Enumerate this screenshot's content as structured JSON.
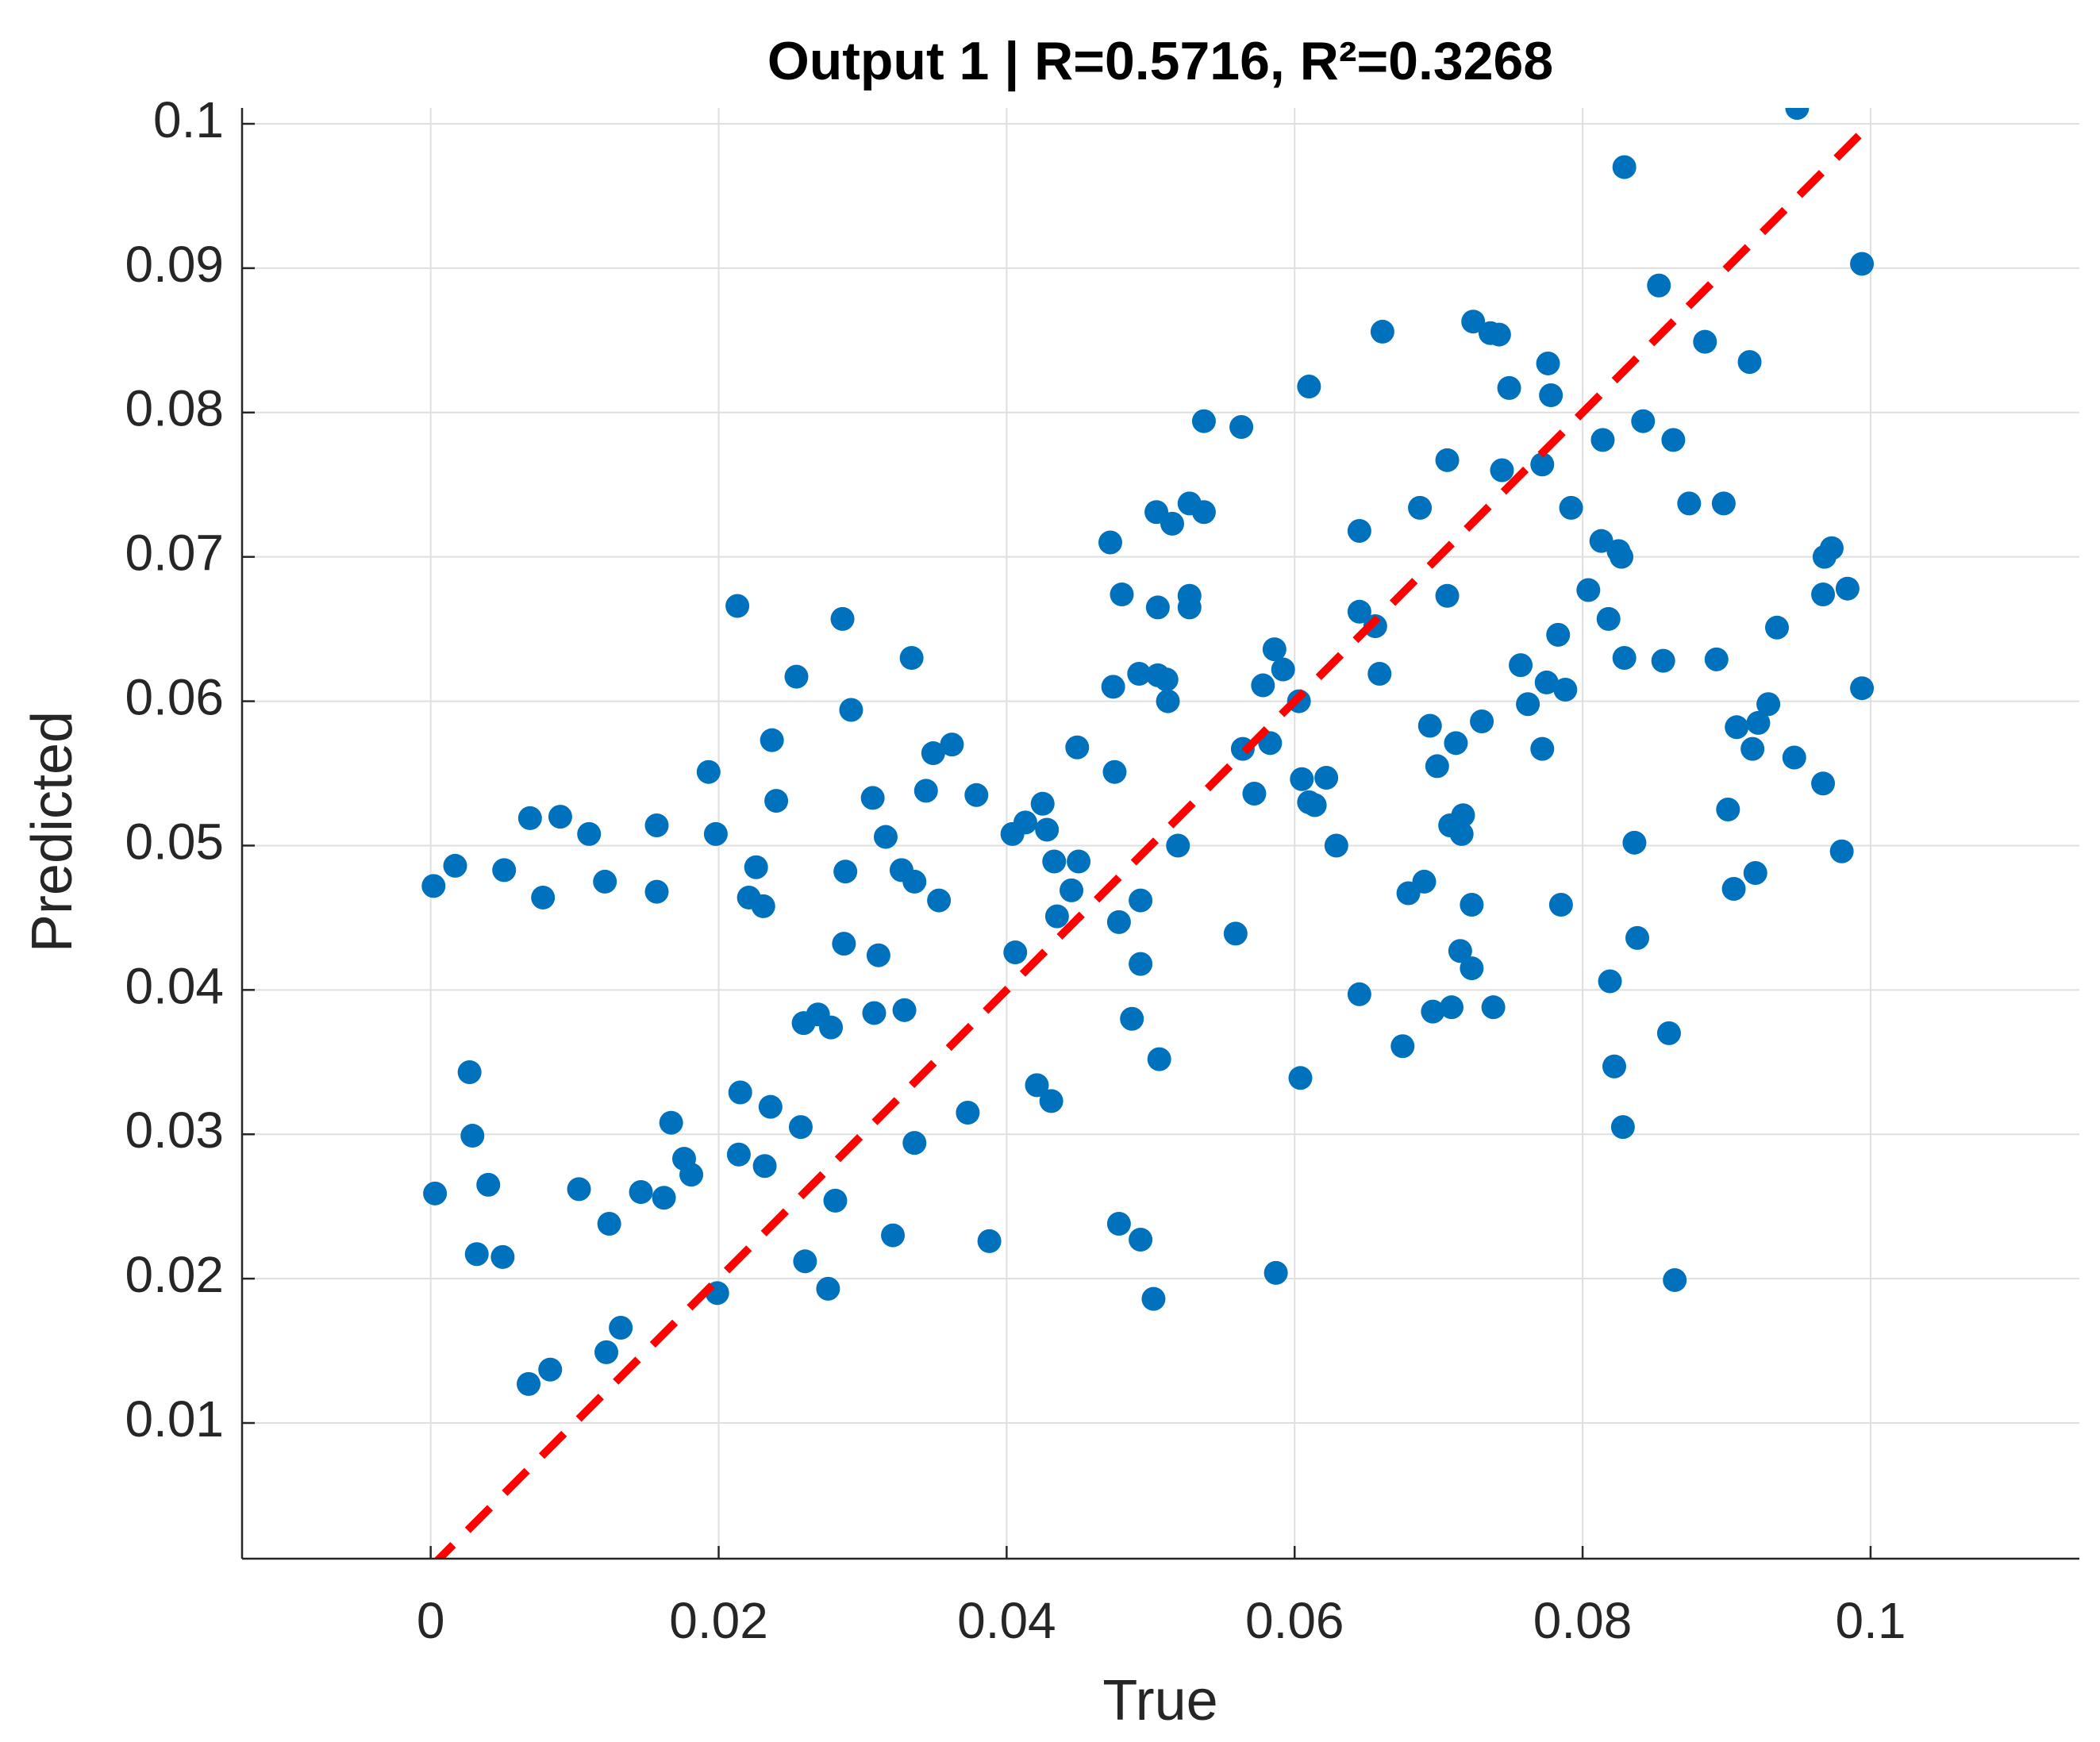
{
  "chart_data": {
    "type": "scatter",
    "title": "Output 1 | R=0.5716, R²=0.3268",
    "x_label": "True",
    "y_label": "Predicted",
    "xlim": [
      -0.0131,
      0.1145
    ],
    "ylim": [
      0.0006,
      0.1011
    ],
    "xticks": [
      0,
      0.02,
      0.04,
      0.06,
      0.08,
      0.1
    ],
    "yticks": [
      0.01,
      0.02,
      0.03,
      0.04,
      0.05,
      0.06,
      0.07,
      0.08,
      0.09,
      0.1
    ],
    "grid": true,
    "color": "#0072bd",
    "x": [
      0.0002,
      0.0017,
      0.0003,
      0.0027,
      0.0029,
      0.0032,
      0.004,
      0.005,
      0.0051,
      0.0069,
      0.0068,
      0.0078,
      0.0083,
      0.009,
      0.0103,
      0.011,
      0.0121,
      0.0124,
      0.0122,
      0.0132,
      0.0146,
      0.0157,
      0.0157,
      0.0162,
      0.0167,
      0.0176,
      0.0181,
      0.0193,
      0.0198,
      0.0199,
      0.0213,
      0.0215,
      0.0214,
      0.0221,
      0.0226,
      0.0231,
      0.0232,
      0.0236,
      0.0237,
      0.024,
      0.0254,
      0.0257,
      0.0259,
      0.026,
      0.0269,
      0.0278,
      0.0276,
      0.0281,
      0.0286,
      0.0288,
      0.0287,
      0.0292,
      0.0307,
      0.0308,
      0.0311,
      0.0316,
      0.0321,
      0.0327,
      0.0329,
      0.0334,
      0.0336,
      0.0336,
      0.0344,
      0.0349,
      0.0353,
      0.0362,
      0.0373,
      0.0379,
      0.0388,
      0.0404,
      0.0406,
      0.0413,
      0.0421,
      0.0425,
      0.0428,
      0.0431,
      0.0433,
      0.0435,
      0.0445,
      0.0449,
      0.045,
      0.0472,
      0.0474,
      0.0475,
      0.0478,
      0.0478,
      0.048,
      0.0487,
      0.0492,
      0.0493,
      0.0493,
      0.0493,
      0.0502,
      0.0504,
      0.0505,
      0.0505,
      0.0506,
      0.0511,
      0.0512,
      0.0515,
      0.0519,
      0.0527,
      0.0527,
      0.0527,
      0.0537,
      0.0537,
      0.0559,
      0.0563,
      0.0564,
      0.0572,
      0.0578,
      0.0583,
      0.0586,
      0.0587,
      0.0592,
      0.0603,
      0.0604,
      0.0605,
      0.061,
      0.061,
      0.0614,
      0.0622,
      0.0629,
      0.0645,
      0.0645,
      0.0645,
      0.0656,
      0.0659,
      0.0661,
      0.0675,
      0.0679,
      0.0687,
      0.069,
      0.0694,
      0.0696,
      0.0699,
      0.0706,
      0.0706,
      0.0708,
      0.0709,
      0.0712,
      0.0715,
      0.0716,
      0.0717,
      0.0723,
      0.0723,
      0.0724,
      0.073,
      0.0736,
      0.0742,
      0.0738,
      0.0744,
      0.0749,
      0.0757,
      0.0762,
      0.0772,
      0.0772,
      0.0775,
      0.0776,
      0.0778,
      0.0783,
      0.0785,
      0.0788,
      0.0792,
      0.0804,
      0.0813,
      0.0814,
      0.0818,
      0.0819,
      0.0822,
      0.0825,
      0.0827,
      0.0828,
      0.0829,
      0.0829,
      0.0836,
      0.0838,
      0.0842,
      0.0853,
      0.0856,
      0.086,
      0.0863,
      0.0864,
      0.0874,
      0.0885,
      0.0893,
      0.0898,
      0.0901,
      0.0905,
      0.0907,
      0.0916,
      0.0918,
      0.092,
      0.0922,
      0.0929,
      0.0935,
      0.0947,
      0.0949,
      0.0967,
      0.0967,
      0.0968,
      0.0973,
      0.098,
      0.0984,
      0.0994,
      0.0994
    ],
    "values": [
      0.0472,
      0.0486,
      0.0259,
      0.0343,
      0.0299,
      0.0217,
      0.0265,
      0.0215,
      0.0483,
      0.0519,
      0.0127,
      0.0464,
      0.0137,
      0.052,
      0.0262,
      0.0508,
      0.0475,
      0.0238,
      0.0149,
      0.0166,
      0.026,
      0.0514,
      0.0468,
      0.0256,
      0.0308,
      0.0283,
      0.0272,
      0.0551,
      0.0508,
      0.019,
      0.0666,
      0.0329,
      0.0286,
      0.0464,
      0.0485,
      0.0458,
      0.0278,
      0.0319,
      0.0573,
      0.0531,
      0.0617,
      0.0305,
      0.0377,
      0.0212,
      0.0383,
      0.0374,
      0.0193,
      0.0254,
      0.0657,
      0.0482,
      0.0432,
      0.0594,
      0.0533,
      0.0384,
      0.0424,
      0.0506,
      0.023,
      0.0483,
      0.0386,
      0.063,
      0.0475,
      0.0294,
      0.0538,
      0.0564,
      0.0462,
      0.057,
      0.0315,
      0.0535,
      0.0226,
      0.0508,
      0.0426,
      0.0516,
      0.0334,
      0.0529,
      0.0511,
      0.0323,
      0.0489,
      0.0451,
      0.0469,
      0.0568,
      0.0489,
      0.071,
      0.061,
      0.0551,
      0.0447,
      0.0238,
      0.0674,
      0.038,
      0.0619,
      0.0418,
      0.0462,
      0.0227,
      0.0186,
      0.0731,
      0.0665,
      0.0618,
      0.0352,
      0.0615,
      0.06,
      0.0723,
      0.05,
      0.0737,
      0.0673,
      0.0665,
      0.0731,
      0.0794,
      0.0439,
      0.079,
      0.0567,
      0.0536,
      0.0611,
      0.0571,
      0.0636,
      0.0204,
      0.0622,
      0.06,
      0.0339,
      0.0546,
      0.0818,
      0.053,
      0.0528,
      0.0547,
      0.05,
      0.0718,
      0.0662,
      0.0397,
      0.0652,
      0.0619,
      0.0856,
      0.0361,
      0.0467,
      0.0734,
      0.0475,
      0.0583,
      0.0385,
      0.0555,
      0.0767,
      0.0673,
      0.0514,
      0.0388,
      0.0571,
      0.0427,
      0.0508,
      0.0521,
      0.0415,
      0.0459,
      0.0863,
      0.0586,
      0.0855,
      0.0854,
      0.0388,
      0.076,
      0.0817,
      0.0625,
      0.0598,
      0.0567,
      0.0764,
      0.0613,
      0.0834,
      0.0812,
      0.0646,
      0.0459,
      0.0608,
      0.0734,
      0.0677,
      0.0711,
      0.0781,
      0.0657,
      0.0406,
      0.0347,
      0.0704,
      0.07,
      0.0305,
      0.063,
      0.097,
      0.0502,
      0.0436,
      0.0794,
      0.0888,
      0.0628,
      0.037,
      0.0781,
      0.0199,
      0.0737,
      0.0849,
      0.0629,
      0.0737,
      0.0525,
      0.047,
      0.0582,
      0.0835,
      0.0567,
      0.0481,
      0.0585,
      0.0598,
      0.0651,
      0.0561,
      0.1011,
      0.0543,
      0.0674,
      0.07,
      0.0706,
      0.0496,
      0.0678,
      0.0903,
      0.0609
    ],
    "reference_line": {
      "x": [
        0,
        0.1
      ],
      "values": [
        0,
        0.1
      ],
      "color": "#ff0000"
    }
  }
}
